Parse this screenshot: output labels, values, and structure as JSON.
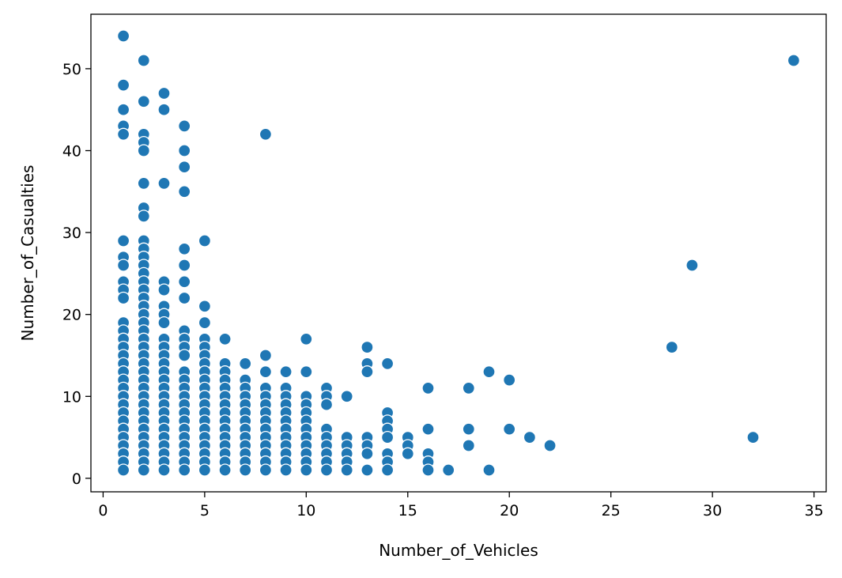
{
  "chart_data": {
    "type": "scatter",
    "xlabel": "Number_of_Vehicles",
    "ylabel": "Number_of_Casualties",
    "xlim": [
      -0.6,
      35.6
    ],
    "ylim": [
      -1.65,
      56.65
    ],
    "xticks": [
      0,
      5,
      10,
      15,
      20,
      25,
      30,
      35
    ],
    "yticks": [
      0,
      10,
      20,
      30,
      40,
      50
    ],
    "grid": false,
    "marker_color": "#1f77b4",
    "marker_edge_color": "#ffffff",
    "points": [
      [
        1,
        54
      ],
      [
        1,
        48
      ],
      [
        1,
        45
      ],
      [
        1,
        43
      ],
      [
        1,
        42
      ],
      [
        1,
        29
      ],
      [
        1,
        27
      ],
      [
        1,
        26
      ],
      [
        1,
        24
      ],
      [
        1,
        23
      ],
      [
        1,
        22
      ],
      [
        1,
        19
      ],
      [
        1,
        18
      ],
      [
        1,
        17
      ],
      [
        1,
        16
      ],
      [
        1,
        15
      ],
      [
        1,
        14
      ],
      [
        1,
        13
      ],
      [
        1,
        12
      ],
      [
        1,
        11
      ],
      [
        1,
        10
      ],
      [
        1,
        9
      ],
      [
        1,
        8
      ],
      [
        1,
        7
      ],
      [
        1,
        6
      ],
      [
        1,
        5
      ],
      [
        1,
        4
      ],
      [
        1,
        3
      ],
      [
        1,
        2
      ],
      [
        1,
        1
      ],
      [
        2,
        51
      ],
      [
        2,
        46
      ],
      [
        2,
        42
      ],
      [
        2,
        41
      ],
      [
        2,
        40
      ],
      [
        2,
        36
      ],
      [
        2,
        33
      ],
      [
        2,
        32
      ],
      [
        2,
        29
      ],
      [
        2,
        28
      ],
      [
        2,
        27
      ],
      [
        2,
        26
      ],
      [
        2,
        25
      ],
      [
        2,
        24
      ],
      [
        2,
        23
      ],
      [
        2,
        22
      ],
      [
        2,
        21
      ],
      [
        2,
        20
      ],
      [
        2,
        19
      ],
      [
        2,
        18
      ],
      [
        2,
        17
      ],
      [
        2,
        16
      ],
      [
        2,
        15
      ],
      [
        2,
        14
      ],
      [
        2,
        13
      ],
      [
        2,
        12
      ],
      [
        2,
        11
      ],
      [
        2,
        10
      ],
      [
        2,
        9
      ],
      [
        2,
        8
      ],
      [
        2,
        7
      ],
      [
        2,
        6
      ],
      [
        2,
        5
      ],
      [
        2,
        4
      ],
      [
        2,
        3
      ],
      [
        2,
        2
      ],
      [
        2,
        1
      ],
      [
        3,
        47
      ],
      [
        3,
        45
      ],
      [
        3,
        36
      ],
      [
        3,
        24
      ],
      [
        3,
        23
      ],
      [
        3,
        21
      ],
      [
        3,
        20
      ],
      [
        3,
        19
      ],
      [
        3,
        17
      ],
      [
        3,
        16
      ],
      [
        3,
        15
      ],
      [
        3,
        14
      ],
      [
        3,
        13
      ],
      [
        3,
        12
      ],
      [
        3,
        11
      ],
      [
        3,
        10
      ],
      [
        3,
        9
      ],
      [
        3,
        8
      ],
      [
        3,
        7
      ],
      [
        3,
        6
      ],
      [
        3,
        5
      ],
      [
        3,
        4
      ],
      [
        3,
        3
      ],
      [
        3,
        2
      ],
      [
        3,
        1
      ],
      [
        4,
        43
      ],
      [
        4,
        40
      ],
      [
        4,
        38
      ],
      [
        4,
        35
      ],
      [
        4,
        28
      ],
      [
        4,
        26
      ],
      [
        4,
        24
      ],
      [
        4,
        22
      ],
      [
        4,
        18
      ],
      [
        4,
        17
      ],
      [
        4,
        16
      ],
      [
        4,
        15
      ],
      [
        4,
        13
      ],
      [
        4,
        12
      ],
      [
        4,
        11
      ],
      [
        4,
        10
      ],
      [
        4,
        9
      ],
      [
        4,
        8
      ],
      [
        4,
        7
      ],
      [
        4,
        6
      ],
      [
        4,
        5
      ],
      [
        4,
        4
      ],
      [
        4,
        3
      ],
      [
        4,
        2
      ],
      [
        4,
        1
      ],
      [
        5,
        29
      ],
      [
        5,
        21
      ],
      [
        5,
        19
      ],
      [
        5,
        17
      ],
      [
        5,
        16
      ],
      [
        5,
        15
      ],
      [
        5,
        14
      ],
      [
        5,
        13
      ],
      [
        5,
        12
      ],
      [
        5,
        11
      ],
      [
        5,
        10
      ],
      [
        5,
        9
      ],
      [
        5,
        8
      ],
      [
        5,
        7
      ],
      [
        5,
        6
      ],
      [
        5,
        5
      ],
      [
        5,
        4
      ],
      [
        5,
        3
      ],
      [
        5,
        2
      ],
      [
        5,
        1
      ],
      [
        6,
        17
      ],
      [
        6,
        14
      ],
      [
        6,
        13
      ],
      [
        6,
        12
      ],
      [
        6,
        11
      ],
      [
        6,
        10
      ],
      [
        6,
        9
      ],
      [
        6,
        8
      ],
      [
        6,
        7
      ],
      [
        6,
        6
      ],
      [
        6,
        5
      ],
      [
        6,
        4
      ],
      [
        6,
        3
      ],
      [
        6,
        2
      ],
      [
        6,
        1
      ],
      [
        7,
        14
      ],
      [
        7,
        12
      ],
      [
        7,
        11
      ],
      [
        7,
        10
      ],
      [
        7,
        9
      ],
      [
        7,
        8
      ],
      [
        7,
        7
      ],
      [
        7,
        6
      ],
      [
        7,
        5
      ],
      [
        7,
        4
      ],
      [
        7,
        3
      ],
      [
        7,
        2
      ],
      [
        7,
        1
      ],
      [
        8,
        42
      ],
      [
        8,
        15
      ],
      [
        8,
        13
      ],
      [
        8,
        11
      ],
      [
        8,
        10
      ],
      [
        8,
        9
      ],
      [
        8,
        8
      ],
      [
        8,
        7
      ],
      [
        8,
        6
      ],
      [
        8,
        5
      ],
      [
        8,
        4
      ],
      [
        8,
        3
      ],
      [
        8,
        2
      ],
      [
        8,
        1
      ],
      [
        9,
        13
      ],
      [
        9,
        11
      ],
      [
        9,
        10
      ],
      [
        9,
        9
      ],
      [
        9,
        8
      ],
      [
        9,
        7
      ],
      [
        9,
        6
      ],
      [
        9,
        5
      ],
      [
        9,
        4
      ],
      [
        9,
        3
      ],
      [
        9,
        2
      ],
      [
        9,
        1
      ],
      [
        10,
        17
      ],
      [
        10,
        13
      ],
      [
        10,
        10
      ],
      [
        10,
        9
      ],
      [
        10,
        8
      ],
      [
        10,
        7
      ],
      [
        10,
        6
      ],
      [
        10,
        5
      ],
      [
        10,
        4
      ],
      [
        10,
        3
      ],
      [
        10,
        2
      ],
      [
        10,
        1
      ],
      [
        11,
        11
      ],
      [
        11,
        10
      ],
      [
        11,
        9
      ],
      [
        11,
        6
      ],
      [
        11,
        5
      ],
      [
        11,
        4
      ],
      [
        11,
        3
      ],
      [
        11,
        2
      ],
      [
        11,
        1
      ],
      [
        12,
        10
      ],
      [
        12,
        5
      ],
      [
        12,
        4
      ],
      [
        12,
        3
      ],
      [
        12,
        2
      ],
      [
        12,
        1
      ],
      [
        13,
        16
      ],
      [
        13,
        14
      ],
      [
        13,
        13
      ],
      [
        13,
        5
      ],
      [
        13,
        4
      ],
      [
        13,
        3
      ],
      [
        13,
        1
      ],
      [
        14,
        14
      ],
      [
        14,
        8
      ],
      [
        14,
        7
      ],
      [
        14,
        6
      ],
      [
        14,
        5
      ],
      [
        14,
        3
      ],
      [
        14,
        2
      ],
      [
        14,
        1
      ],
      [
        15,
        5
      ],
      [
        15,
        4
      ],
      [
        15,
        3
      ],
      [
        16,
        11
      ],
      [
        16,
        6
      ],
      [
        16,
        3
      ],
      [
        16,
        2
      ],
      [
        16,
        1
      ],
      [
        17,
        1
      ],
      [
        18,
        11
      ],
      [
        18,
        6
      ],
      [
        18,
        4
      ],
      [
        19,
        13
      ],
      [
        19,
        1
      ],
      [
        20,
        12
      ],
      [
        20,
        6
      ],
      [
        21,
        5
      ],
      [
        22,
        4
      ],
      [
        28,
        16
      ],
      [
        29,
        26
      ],
      [
        32,
        5
      ],
      [
        34,
        51
      ]
    ]
  }
}
